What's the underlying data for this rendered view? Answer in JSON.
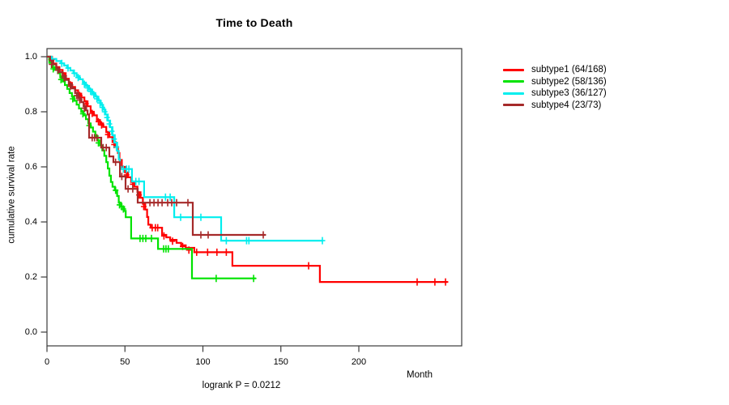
{
  "chart_data": {
    "type": "line",
    "variant": "kaplan-meier-step",
    "title": "Time to Death",
    "xlabel": "Month",
    "ylabel": "cumulative survival rate",
    "annotation": "logrank P = 0.0212",
    "xlim": [
      0,
      266
    ],
    "ylim": [
      -0.05,
      1.04
    ],
    "x_ticks": [
      0,
      50,
      100,
      150,
      200
    ],
    "y_ticks": [
      "0.0",
      "0.2",
      "0.4",
      "0.6",
      "0.8",
      "1.0"
    ],
    "grid": false,
    "legend_position": "right-outside",
    "axis_color": "#3b3b3b",
    "series": [
      {
        "name": "subtype1 (64/168)",
        "color": "#ff0000",
        "end": 257,
        "steps": [
          [
            0,
            1.0
          ],
          [
            2,
            0.99
          ],
          [
            4,
            0.975
          ],
          [
            6,
            0.962
          ],
          [
            8,
            0.952
          ],
          [
            10,
            0.94
          ],
          [
            12,
            0.92
          ],
          [
            14,
            0.905
          ],
          [
            16,
            0.89
          ],
          [
            18,
            0.878
          ],
          [
            20,
            0.866
          ],
          [
            22,
            0.852
          ],
          [
            24,
            0.838
          ],
          [
            26,
            0.82
          ],
          [
            28,
            0.8
          ],
          [
            30,
            0.787
          ],
          [
            32,
            0.77
          ],
          [
            34,
            0.758
          ],
          [
            36,
            0.745
          ],
          [
            38,
            0.726
          ],
          [
            40,
            0.708
          ],
          [
            42,
            0.69
          ],
          [
            44,
            0.672
          ],
          [
            45.5,
            0.65
          ],
          [
            46.5,
            0.625
          ],
          [
            48,
            0.6
          ],
          [
            50,
            0.58
          ],
          [
            52,
            0.562
          ],
          [
            54,
            0.545
          ],
          [
            56,
            0.528
          ],
          [
            58,
            0.508
          ],
          [
            60,
            0.488
          ],
          [
            61.5,
            0.466
          ],
          [
            63,
            0.445
          ],
          [
            64.2,
            0.418
          ],
          [
            65,
            0.39
          ],
          [
            66.5,
            0.379
          ],
          [
            73.8,
            0.353
          ],
          [
            76.5,
            0.344
          ],
          [
            79,
            0.335
          ],
          [
            83.1,
            0.324
          ],
          [
            86,
            0.315
          ],
          [
            89,
            0.306
          ],
          [
            94.5,
            0.29
          ],
          [
            118.9,
            0.241
          ],
          [
            175,
            0.182
          ]
        ],
        "censors": [
          [
            2.6,
            0.99
          ],
          [
            3.4,
            0.99
          ],
          [
            7,
            0.952
          ],
          [
            11,
            0.93
          ],
          [
            15,
            0.898
          ],
          [
            21,
            0.859
          ],
          [
            25,
            0.829
          ],
          [
            29,
            0.794
          ],
          [
            33,
            0.764
          ],
          [
            35,
            0.752
          ],
          [
            39,
            0.717
          ],
          [
            43,
            0.681
          ],
          [
            51,
            0.571
          ],
          [
            55,
            0.537
          ],
          [
            59,
            0.498
          ],
          [
            62,
            0.456
          ],
          [
            67.5,
            0.379
          ],
          [
            69.5,
            0.379
          ],
          [
            71,
            0.379
          ],
          [
            75,
            0.349
          ],
          [
            80.5,
            0.33
          ],
          [
            87,
            0.311
          ],
          [
            91,
            0.298
          ],
          [
            96,
            0.29
          ],
          [
            103,
            0.29
          ],
          [
            109,
            0.29
          ],
          [
            115,
            0.29
          ],
          [
            167.8,
            0.241
          ],
          [
            237.4,
            0.182
          ],
          [
            248.8,
            0.182
          ],
          [
            255.6,
            0.182
          ]
        ]
      },
      {
        "name": "subtype2 (58/136)",
        "color": "#00e300",
        "end": 134,
        "steps": [
          [
            0,
            1.0
          ],
          [
            1.5,
            0.978
          ],
          [
            3,
            0.962
          ],
          [
            5,
            0.952
          ],
          [
            7,
            0.94
          ],
          [
            8.5,
            0.925
          ],
          [
            10,
            0.91
          ],
          [
            11.5,
            0.897
          ],
          [
            13,
            0.883
          ],
          [
            14.5,
            0.868
          ],
          [
            16,
            0.855
          ],
          [
            17.5,
            0.84
          ],
          [
            19,
            0.826
          ],
          [
            20.5,
            0.812
          ],
          [
            22,
            0.8
          ],
          [
            23.5,
            0.787
          ],
          [
            25,
            0.773
          ],
          [
            26.5,
            0.758
          ],
          [
            28,
            0.743
          ],
          [
            29.5,
            0.728
          ],
          [
            31,
            0.712
          ],
          [
            32.5,
            0.696
          ],
          [
            34,
            0.678
          ],
          [
            35.5,
            0.66
          ],
          [
            36.8,
            0.64
          ],
          [
            38,
            0.617
          ],
          [
            39,
            0.594
          ],
          [
            40,
            0.568
          ],
          [
            41,
            0.545
          ],
          [
            42,
            0.528
          ],
          [
            43.5,
            0.515
          ],
          [
            45,
            0.494
          ],
          [
            46,
            0.47
          ],
          [
            47.5,
            0.455
          ],
          [
            49.5,
            0.44
          ],
          [
            50.5,
            0.417
          ],
          [
            54,
            0.34
          ],
          [
            71.2,
            0.302
          ],
          [
            93,
            0.195
          ]
        ],
        "censors": [
          [
            4,
            0.956
          ],
          [
            9,
            0.917
          ],
          [
            16.5,
            0.847
          ],
          [
            23,
            0.793
          ],
          [
            27,
            0.75
          ],
          [
            33,
            0.687
          ],
          [
            44,
            0.515
          ],
          [
            46.5,
            0.462
          ],
          [
            48,
            0.455
          ],
          [
            49,
            0.447
          ],
          [
            59.7,
            0.34
          ],
          [
            61.5,
            0.34
          ],
          [
            63.4,
            0.34
          ],
          [
            67,
            0.34
          ],
          [
            74.8,
            0.302
          ],
          [
            76.3,
            0.302
          ],
          [
            77.8,
            0.302
          ],
          [
            108.5,
            0.195
          ],
          [
            132.5,
            0.195
          ]
        ]
      },
      {
        "name": "subtype3 (36/127)",
        "color": "#00eeee",
        "end": 176.6,
        "steps": [
          [
            0,
            1.0
          ],
          [
            3,
            0.992
          ],
          [
            6,
            0.984
          ],
          [
            9,
            0.976
          ],
          [
            11,
            0.968
          ],
          [
            13,
            0.959
          ],
          [
            15,
            0.95
          ],
          [
            17,
            0.94
          ],
          [
            19,
            0.93
          ],
          [
            21,
            0.918
          ],
          [
            23,
            0.906
          ],
          [
            25,
            0.894
          ],
          [
            27,
            0.881
          ],
          [
            29,
            0.868
          ],
          [
            31,
            0.855
          ],
          [
            33,
            0.84
          ],
          [
            34.5,
            0.825
          ],
          [
            36,
            0.808
          ],
          [
            37.5,
            0.79
          ],
          [
            39,
            0.768
          ],
          [
            40.5,
            0.744
          ],
          [
            42,
            0.715
          ],
          [
            43.5,
            0.688
          ],
          [
            45,
            0.658
          ],
          [
            46,
            0.628
          ],
          [
            46.8,
            0.6
          ],
          [
            47.5,
            0.592
          ],
          [
            54.5,
            0.547
          ],
          [
            62.3,
            0.49
          ],
          [
            81.6,
            0.417
          ],
          [
            111.7,
            0.332
          ]
        ],
        "censors": [
          [
            9.5,
            0.976
          ],
          [
            13.5,
            0.959
          ],
          [
            17.5,
            0.94
          ],
          [
            20,
            0.924
          ],
          [
            24,
            0.9
          ],
          [
            26,
            0.887
          ],
          [
            28,
            0.874
          ],
          [
            30,
            0.862
          ],
          [
            32,
            0.847
          ],
          [
            34,
            0.832
          ],
          [
            35.5,
            0.816
          ],
          [
            37,
            0.8
          ],
          [
            38.5,
            0.779
          ],
          [
            40,
            0.756
          ],
          [
            41.5,
            0.729
          ],
          [
            43,
            0.701
          ],
          [
            44.5,
            0.672
          ],
          [
            49,
            0.592
          ],
          [
            51,
            0.592
          ],
          [
            52.5,
            0.592
          ],
          [
            57,
            0.547
          ],
          [
            59,
            0.547
          ],
          [
            76,
            0.49
          ],
          [
            79,
            0.49
          ],
          [
            85.7,
            0.417
          ],
          [
            98.7,
            0.417
          ],
          [
            115,
            0.332
          ],
          [
            128,
            0.332
          ],
          [
            129.5,
            0.332
          ],
          [
            176.6,
            0.332
          ]
        ]
      },
      {
        "name": "subtype4 (23/73)",
        "color": "#a52a2a",
        "end": 140.3,
        "steps": [
          [
            0,
            1.0
          ],
          [
            2,
            0.986
          ],
          [
            4,
            0.972
          ],
          [
            6,
            0.958
          ],
          [
            8,
            0.944
          ],
          [
            10,
            0.93
          ],
          [
            12,
            0.916
          ],
          [
            14,
            0.9
          ],
          [
            16,
            0.885
          ],
          [
            18,
            0.868
          ],
          [
            20,
            0.85
          ],
          [
            22,
            0.835
          ],
          [
            23.5,
            0.82
          ],
          [
            25,
            0.805
          ],
          [
            26,
            0.79
          ],
          [
            27,
            0.706
          ],
          [
            34.8,
            0.67
          ],
          [
            40,
            0.638
          ],
          [
            42.6,
            0.617
          ],
          [
            46.8,
            0.565
          ],
          [
            50.4,
            0.52
          ],
          [
            58.2,
            0.47
          ],
          [
            93.5,
            0.353
          ]
        ],
        "censors": [
          [
            3,
            0.972
          ],
          [
            7,
            0.951
          ],
          [
            11,
            0.923
          ],
          [
            15,
            0.893
          ],
          [
            19,
            0.859
          ],
          [
            21,
            0.843
          ],
          [
            24,
            0.813
          ],
          [
            29,
            0.706
          ],
          [
            30.5,
            0.706
          ],
          [
            32,
            0.706
          ],
          [
            36,
            0.67
          ],
          [
            38,
            0.67
          ],
          [
            44,
            0.617
          ],
          [
            48,
            0.565
          ],
          [
            52,
            0.52
          ],
          [
            55,
            0.52
          ],
          [
            66,
            0.47
          ],
          [
            68.6,
            0.47
          ],
          [
            71.2,
            0.47
          ],
          [
            73.8,
            0.47
          ],
          [
            77.4,
            0.47
          ],
          [
            80,
            0.47
          ],
          [
            83.1,
            0.47
          ],
          [
            90.4,
            0.47
          ],
          [
            98.7,
            0.353
          ],
          [
            103.4,
            0.353
          ],
          [
            138.7,
            0.353
          ]
        ]
      }
    ]
  }
}
